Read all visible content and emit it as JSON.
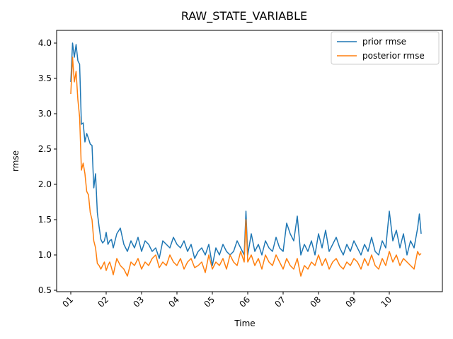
{
  "chart_data": {
    "type": "line",
    "title": "RAW_STATE_VARIABLE",
    "xlabel": "Time",
    "ylabel": "rmse",
    "xlim": [
      -0.4,
      10.5
    ],
    "ylim": [
      0.48,
      4.18
    ],
    "x_ticks": [
      {
        "value": 0,
        "label": "01"
      },
      {
        "value": 1,
        "label": "02"
      },
      {
        "value": 2,
        "label": "03"
      },
      {
        "value": 3,
        "label": "04"
      },
      {
        "value": 4,
        "label": "05"
      },
      {
        "value": 5,
        "label": "06"
      },
      {
        "value": 6,
        "label": "07"
      },
      {
        "value": 7,
        "label": "08"
      },
      {
        "value": 8,
        "label": "09"
      },
      {
        "value": 9,
        "label": "10"
      }
    ],
    "y_ticks": [
      {
        "value": 0.5,
        "label": "0.5"
      },
      {
        "value": 1.0,
        "label": "1.0"
      },
      {
        "value": 1.5,
        "label": "1.5"
      },
      {
        "value": 2.0,
        "label": "2.0"
      },
      {
        "value": 2.5,
        "label": "2.5"
      },
      {
        "value": 3.0,
        "label": "3.0"
      },
      {
        "value": 3.5,
        "label": "3.5"
      },
      {
        "value": 4.0,
        "label": "4.0"
      }
    ],
    "grid": false,
    "legend_position": "top-right",
    "series": [
      {
        "name": "prior rmse",
        "color": "#1f77b4",
        "x": [
          0,
          0.05,
          0.1,
          0.15,
          0.2,
          0.25,
          0.3,
          0.35,
          0.4,
          0.45,
          0.5,
          0.55,
          0.6,
          0.65,
          0.7,
          0.75,
          0.8,
          0.85,
          0.9,
          0.95,
          1.0,
          1.05,
          1.1,
          1.15,
          1.2,
          1.3,
          1.4,
          1.5,
          1.6,
          1.7,
          1.8,
          1.9,
          2.0,
          2.1,
          2.2,
          2.3,
          2.4,
          2.5,
          2.6,
          2.7,
          2.8,
          2.9,
          3.0,
          3.1,
          3.2,
          3.3,
          3.4,
          3.5,
          3.6,
          3.7,
          3.8,
          3.9,
          4.0,
          4.1,
          4.2,
          4.3,
          4.4,
          4.5,
          4.6,
          4.7,
          4.8,
          4.9,
          4.95,
          5.0,
          5.1,
          5.2,
          5.3,
          5.4,
          5.5,
          5.6,
          5.7,
          5.8,
          5.9,
          6.0,
          6.1,
          6.2,
          6.3,
          6.4,
          6.5,
          6.6,
          6.7,
          6.8,
          6.9,
          7.0,
          7.1,
          7.2,
          7.3,
          7.4,
          7.5,
          7.6,
          7.7,
          7.8,
          7.9,
          8.0,
          8.1,
          8.2,
          8.3,
          8.4,
          8.5,
          8.6,
          8.7,
          8.8,
          8.9,
          9.0,
          9.1,
          9.2,
          9.3,
          9.4,
          9.5,
          9.6,
          9.7,
          9.8,
          9.85,
          9.9
        ],
        "values": [
          3.45,
          4.0,
          3.8,
          3.98,
          3.75,
          3.7,
          2.85,
          2.87,
          2.6,
          2.72,
          2.65,
          2.57,
          2.55,
          1.95,
          2.15,
          1.6,
          1.4,
          1.22,
          1.17,
          1.2,
          1.32,
          1.15,
          1.2,
          1.22,
          1.1,
          1.3,
          1.38,
          1.15,
          1.05,
          1.2,
          1.1,
          1.25,
          1.05,
          1.2,
          1.15,
          1.05,
          1.1,
          0.95,
          1.2,
          1.15,
          1.1,
          1.25,
          1.15,
          1.1,
          1.2,
          1.05,
          1.15,
          0.95,
          1.05,
          1.1,
          1.0,
          1.15,
          0.85,
          1.1,
          1.0,
          1.15,
          1.05,
          1.0,
          1.05,
          1.2,
          1.1,
          1.0,
          1.62,
          1.0,
          1.3,
          1.05,
          1.15,
          1.0,
          1.2,
          1.1,
          1.05,
          1.25,
          1.1,
          1.05,
          1.45,
          1.3,
          1.2,
          1.55,
          1.0,
          1.15,
          1.05,
          1.2,
          1.0,
          1.3,
          1.1,
          1.35,
          1.05,
          1.15,
          1.25,
          1.1,
          1.0,
          1.15,
          1.05,
          1.2,
          1.1,
          1.0,
          1.15,
          1.05,
          1.25,
          1.05,
          1.0,
          1.2,
          1.1,
          1.62,
          1.2,
          1.35,
          1.1,
          1.3,
          1.0,
          1.2,
          1.1,
          1.38,
          1.58,
          1.3
        ]
      },
      {
        "name": "posterior rmse",
        "color": "#ff7f0e",
        "x": [
          0,
          0.05,
          0.1,
          0.15,
          0.2,
          0.25,
          0.3,
          0.35,
          0.4,
          0.45,
          0.5,
          0.55,
          0.6,
          0.65,
          0.7,
          0.75,
          0.8,
          0.85,
          0.9,
          0.95,
          1.0,
          1.05,
          1.1,
          1.15,
          1.2,
          1.3,
          1.4,
          1.5,
          1.6,
          1.7,
          1.8,
          1.9,
          2.0,
          2.1,
          2.2,
          2.3,
          2.4,
          2.5,
          2.6,
          2.7,
          2.8,
          2.9,
          3.0,
          3.1,
          3.2,
          3.3,
          3.4,
          3.5,
          3.6,
          3.7,
          3.8,
          3.9,
          4.0,
          4.1,
          4.2,
          4.3,
          4.4,
          4.5,
          4.6,
          4.7,
          4.8,
          4.9,
          4.95,
          5.0,
          5.1,
          5.2,
          5.3,
          5.4,
          5.5,
          5.6,
          5.7,
          5.8,
          5.9,
          6.0,
          6.1,
          6.2,
          6.3,
          6.4,
          6.5,
          6.6,
          6.7,
          6.8,
          6.9,
          7.0,
          7.1,
          7.2,
          7.3,
          7.4,
          7.5,
          7.6,
          7.7,
          7.8,
          7.9,
          8.0,
          8.1,
          8.2,
          8.3,
          8.4,
          8.5,
          8.6,
          8.7,
          8.8,
          8.9,
          9.0,
          9.1,
          9.2,
          9.3,
          9.4,
          9.5,
          9.6,
          9.7,
          9.8,
          9.85,
          9.9
        ],
        "values": [
          3.28,
          3.8,
          3.45,
          3.6,
          3.2,
          2.95,
          2.2,
          2.3,
          2.15,
          1.9,
          1.85,
          1.6,
          1.5,
          1.2,
          1.1,
          0.88,
          0.85,
          0.8,
          0.85,
          0.9,
          0.78,
          0.85,
          0.9,
          0.82,
          0.72,
          0.95,
          0.85,
          0.8,
          0.7,
          0.9,
          0.85,
          0.95,
          0.8,
          0.9,
          0.85,
          0.95,
          1.0,
          0.82,
          0.9,
          0.85,
          1.0,
          0.9,
          0.85,
          0.95,
          0.8,
          0.9,
          0.95,
          0.82,
          0.85,
          0.9,
          0.75,
          1.0,
          0.8,
          0.9,
          0.85,
          0.95,
          0.8,
          1.0,
          0.9,
          0.85,
          1.05,
          0.9,
          1.5,
          0.9,
          1.0,
          0.85,
          0.95,
          0.8,
          1.0,
          0.9,
          0.85,
          1.0,
          0.9,
          0.8,
          0.95,
          0.85,
          0.8,
          0.95,
          0.7,
          0.85,
          0.8,
          0.9,
          0.85,
          1.0,
          0.85,
          0.95,
          0.8,
          0.9,
          0.95,
          0.85,
          0.8,
          0.9,
          0.85,
          0.95,
          0.9,
          0.8,
          0.95,
          0.85,
          1.0,
          0.85,
          0.8,
          0.95,
          0.85,
          1.05,
          0.9,
          1.0,
          0.85,
          0.95,
          0.9,
          0.85,
          0.8,
          1.05,
          1.0,
          1.02
        ]
      }
    ]
  }
}
